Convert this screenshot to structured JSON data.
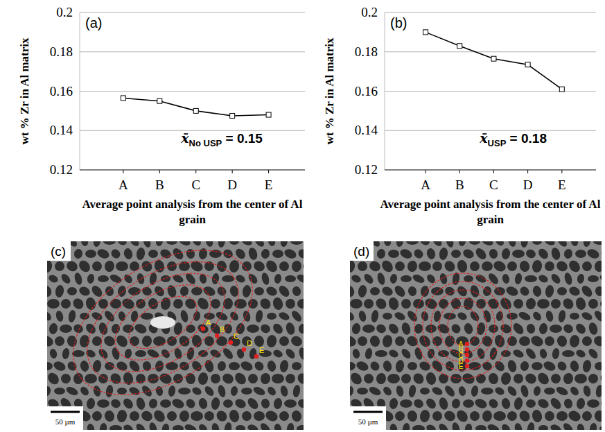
{
  "chart_data": [
    {
      "type": "line",
      "panel": "(a)",
      "x_label": "Average point analysis from the center of Al grain",
      "y_label": "wt % Zr in Al matrix",
      "categories": [
        "A",
        "B",
        "C",
        "D",
        "E"
      ],
      "values": [
        0.1565,
        0.155,
        0.15,
        0.1475,
        0.148
      ],
      "color": "#000000",
      "marker": "square",
      "line_style": "solid",
      "ylim": [
        0.12,
        0.2
      ],
      "yticks": [
        0.12,
        0.14,
        0.16,
        0.18,
        0.2
      ],
      "grid": true,
      "annotation": {
        "symbol": "x̄",
        "subscript": "No USP",
        "text": " = 0.15"
      }
    },
    {
      "type": "line",
      "panel": "(b)",
      "x_label": "Average point analysis from the center of Al grain",
      "y_label": "wt % Zr in Al matrix",
      "categories": [
        "A",
        "B",
        "C",
        "D",
        "E"
      ],
      "values": [
        0.19,
        0.183,
        0.1765,
        0.1735,
        0.161
      ],
      "color": "#000000",
      "marker": "square",
      "line_style": "solid",
      "ylim": [
        0.12,
        0.2
      ],
      "yticks": [
        0.12,
        0.14,
        0.16,
        0.18,
        0.2
      ],
      "grid": true,
      "annotation": {
        "symbol": "x̄",
        "subscript": "USP",
        "text": " = 0.18"
      }
    }
  ],
  "micrographs": [
    {
      "panel": "(c)",
      "point_labels": [
        "A",
        "B",
        "C",
        "D",
        "E"
      ],
      "scale_bar": "50 µm"
    },
    {
      "panel": "(d)",
      "point_labels": [
        "A",
        "B",
        "C",
        "D",
        "E"
      ],
      "scale_bar": "50 µm"
    }
  ]
}
